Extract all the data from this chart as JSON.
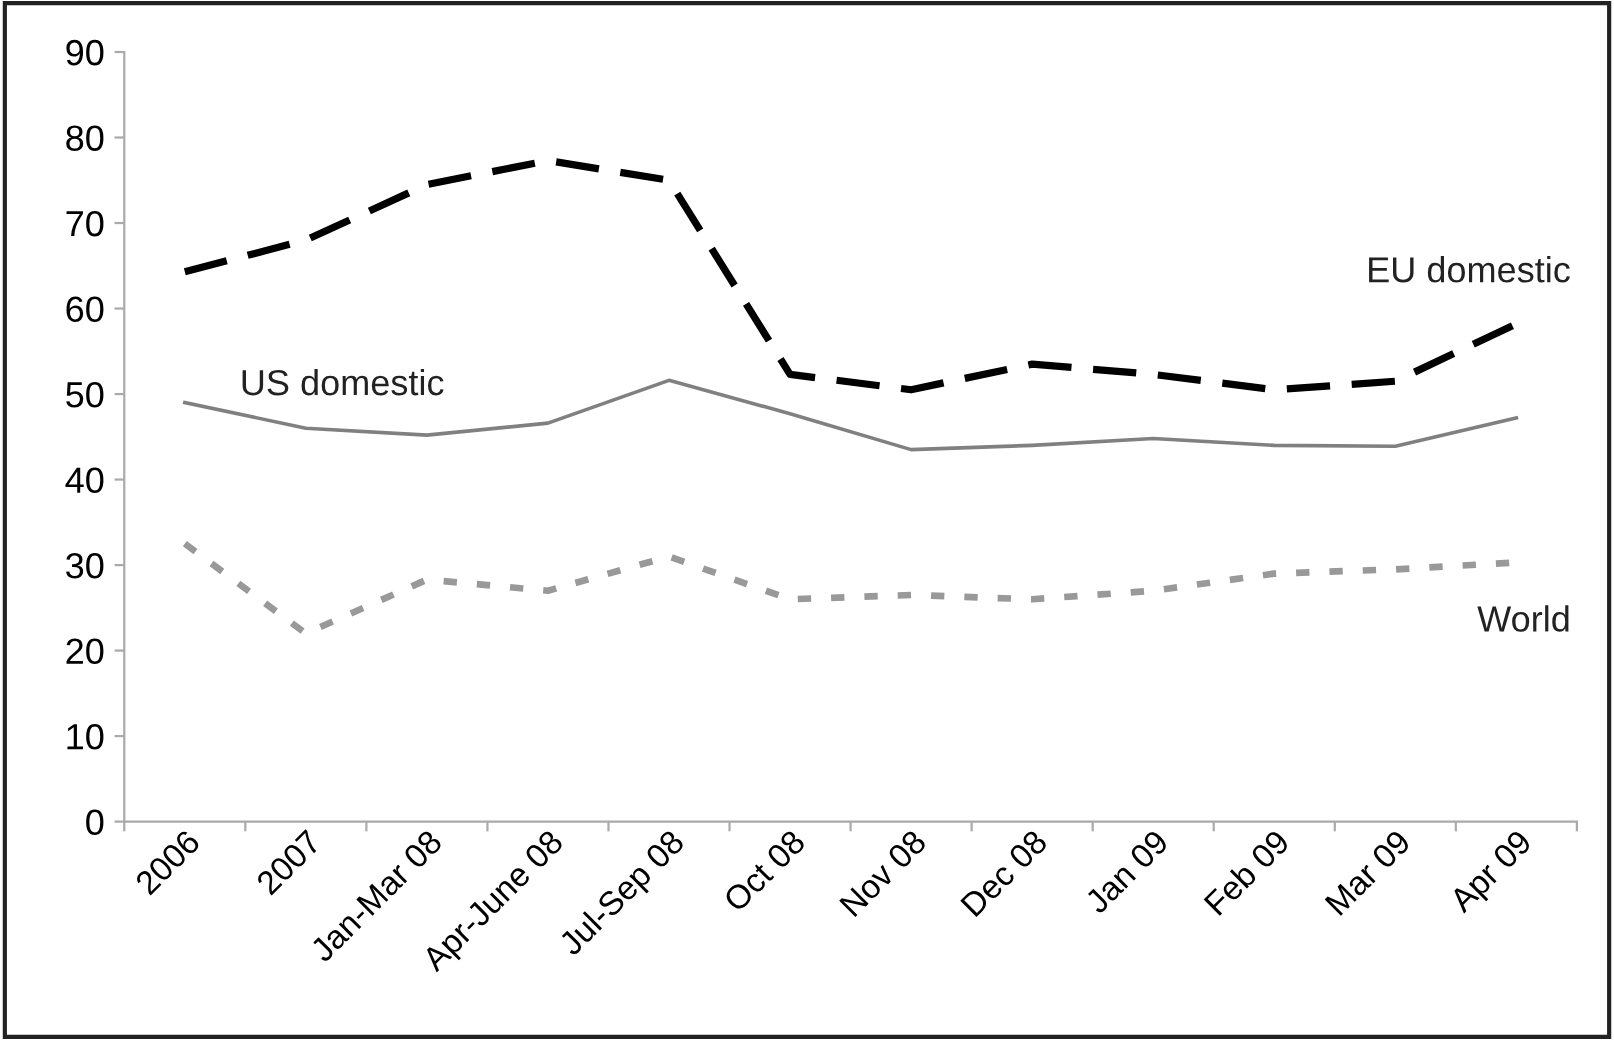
{
  "chart_data": {
    "type": "line",
    "categories": [
      "2006",
      "2007",
      "Jan-Mar 08",
      "Apr-June 08",
      "Jul-Sep 08",
      "Oct 08",
      "Nov 08",
      "Dec 08",
      "Jan 09",
      "Feb 09",
      "Mar 09",
      "Apr 09"
    ],
    "series": [
      {
        "name": "EU domestic",
        "color": "#000000",
        "line_style": "dashed",
        "values": [
          64.3,
          68,
          74.5,
          77.3,
          75,
          52.3,
          50.5,
          53.5,
          52.3,
          50.5,
          51.5,
          58.2
        ]
      },
      {
        "name": "US domestic",
        "color": "#808080",
        "line_style": "solid",
        "values": [
          49,
          46,
          45.2,
          46.6,
          51.6,
          47.7,
          43.5,
          44,
          44.8,
          44,
          43.9,
          47.2
        ]
      },
      {
        "name": "World",
        "color": "#999999",
        "line_style": "dotted",
        "values": [
          32.5,
          22,
          28.3,
          27,
          31,
          26,
          26.5,
          26,
          27,
          29,
          29.5,
          30.3
        ]
      }
    ],
    "ylim": [
      0,
      90
    ],
    "yticks": [
      0,
      10,
      20,
      30,
      40,
      50,
      60,
      70,
      80,
      90
    ],
    "grid": false,
    "legend": false,
    "marker": "none"
  }
}
